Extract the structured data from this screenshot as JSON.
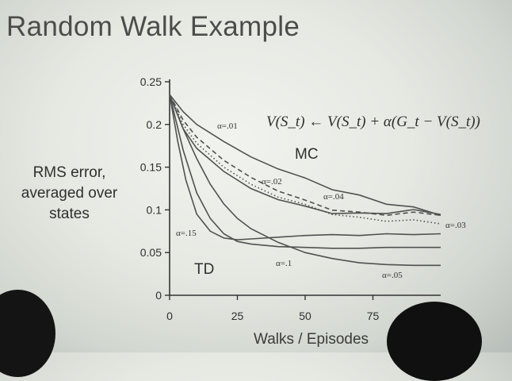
{
  "slide": {
    "title": "Random Walk Example"
  },
  "equation": "V(S_t) ← V(S_t) + α(G_t − V(S_t))",
  "chart_data": {
    "type": "line",
    "title": "",
    "xlabel": "Walks / Episodes",
    "ylabel": "RMS error, averaged over states",
    "xlim": [
      0,
      100
    ],
    "ylim": [
      0,
      0.25
    ],
    "xticks": [
      "0",
      "25",
      "50",
      "75"
    ],
    "yticks": [
      "0",
      "0.05",
      "0.1",
      "0.15",
      "0.2",
      "0.25"
    ],
    "method_labels": [
      "MC",
      "TD"
    ],
    "series": [
      {
        "name": "α=.01",
        "group": "MC",
        "style": "solid",
        "x": [
          0,
          5,
          10,
          20,
          30,
          40,
          50,
          60,
          70,
          80,
          90,
          100
        ],
        "y": [
          0.235,
          0.215,
          0.2,
          0.18,
          0.162,
          0.148,
          0.136,
          0.125,
          0.116,
          0.108,
          0.102,
          0.095
        ]
      },
      {
        "name": "α=.02",
        "group": "MC",
        "style": "dashed",
        "x": [
          0,
          5,
          10,
          20,
          30,
          40,
          50,
          60,
          70,
          80,
          90,
          100
        ],
        "y": [
          0.235,
          0.205,
          0.185,
          0.158,
          0.138,
          0.122,
          0.11,
          0.101,
          0.096,
          0.095,
          0.096,
          0.095
        ]
      },
      {
        "name": "α=.03",
        "group": "MC",
        "style": "dotted",
        "x": [
          0,
          5,
          10,
          20,
          30,
          40,
          50,
          60,
          70,
          80,
          90,
          100
        ],
        "y": [
          0.235,
          0.2,
          0.178,
          0.15,
          0.13,
          0.115,
          0.105,
          0.096,
          0.09,
          0.088,
          0.087,
          0.085
        ]
      },
      {
        "name": "α=.04",
        "group": "MC",
        "style": "solid",
        "x": [
          0,
          5,
          10,
          20,
          30,
          40,
          50,
          60,
          70,
          80,
          90,
          100
        ],
        "y": [
          0.235,
          0.195,
          0.172,
          0.145,
          0.125,
          0.112,
          0.103,
          0.097,
          0.095,
          0.097,
          0.099,
          0.096
        ]
      },
      {
        "name": "α=.15",
        "group": "TD",
        "style": "solid",
        "x": [
          0,
          3,
          6,
          10,
          15,
          20,
          25,
          30,
          40,
          50,
          60,
          70,
          80,
          90,
          100
        ],
        "y": [
          0.235,
          0.18,
          0.135,
          0.095,
          0.075,
          0.067,
          0.065,
          0.066,
          0.068,
          0.07,
          0.071,
          0.07,
          0.072,
          0.071,
          0.072
        ]
      },
      {
        "name": "α=.1",
        "group": "TD",
        "style": "solid",
        "x": [
          0,
          5,
          10,
          15,
          20,
          25,
          30,
          40,
          50,
          60,
          70,
          80,
          90,
          100
        ],
        "y": [
          0.235,
          0.17,
          0.12,
          0.09,
          0.072,
          0.063,
          0.06,
          0.057,
          0.056,
          0.055,
          0.055,
          0.056,
          0.056,
          0.056
        ]
      },
      {
        "name": "α=.05",
        "group": "TD",
        "style": "solid",
        "x": [
          0,
          5,
          10,
          15,
          20,
          25,
          30,
          40,
          50,
          60,
          70,
          80,
          90,
          100
        ],
        "y": [
          0.235,
          0.195,
          0.16,
          0.13,
          0.107,
          0.09,
          0.078,
          0.062,
          0.05,
          0.043,
          0.038,
          0.036,
          0.035,
          0.035
        ]
      }
    ]
  }
}
